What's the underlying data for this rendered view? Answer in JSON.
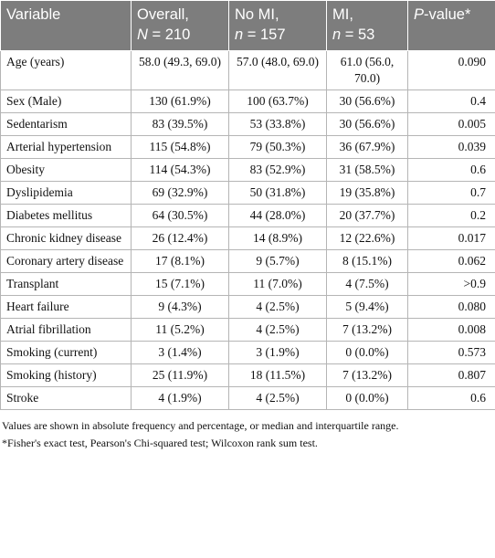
{
  "table": {
    "header": [
      {
        "line1": "Variable"
      },
      {
        "line1": "Overall,",
        "italic": "N",
        "rest": " = 210"
      },
      {
        "line1": "No MI,",
        "italic": "n",
        "rest": " = 157"
      },
      {
        "line1": "MI,",
        "italic": "n",
        "rest": " = 53"
      },
      {
        "italic": "P",
        "rest": "-value*"
      }
    ],
    "rows": [
      [
        "Age (years)",
        "58.0 (49.3, 69.0)",
        "57.0 (48.0, 69.0)",
        "61.0 (56.0, 70.0)",
        "0.090"
      ],
      [
        "Sex (Male)",
        "130 (61.9%)",
        "100 (63.7%)",
        "30 (56.6%)",
        "0.4"
      ],
      [
        "Sedentarism",
        "83 (39.5%)",
        "53 (33.8%)",
        "30 (56.6%)",
        "0.005"
      ],
      [
        "Arterial hypertension",
        "115 (54.8%)",
        "79 (50.3%)",
        "36 (67.9%)",
        "0.039"
      ],
      [
        "Obesity",
        "114 (54.3%)",
        "83 (52.9%)",
        "31 (58.5%)",
        "0.6"
      ],
      [
        "Dyslipidemia",
        "69 (32.9%)",
        "50 (31.8%)",
        "19 (35.8%)",
        "0.7"
      ],
      [
        "Diabetes mellitus",
        "64 (30.5%)",
        "44 (28.0%)",
        "20 (37.7%)",
        "0.2"
      ],
      [
        "Chronic kidney disease",
        "26 (12.4%)",
        "14 (8.9%)",
        "12 (22.6%)",
        "0.017"
      ],
      [
        "Coronary artery disease",
        "17 (8.1%)",
        "9 (5.7%)",
        "8 (15.1%)",
        "0.062"
      ],
      [
        "Transplant",
        "15 (7.1%)",
        "11 (7.0%)",
        "4 (7.5%)",
        ">0.9"
      ],
      [
        "Heart failure",
        "9 (4.3%)",
        "4 (2.5%)",
        "5 (9.4%)",
        "0.080"
      ],
      [
        "Atrial fibrillation",
        "11 (5.2%)",
        "4 (2.5%)",
        "7 (13.2%)",
        "0.008"
      ],
      [
        "Smoking (current)",
        "3 (1.4%)",
        "3 (1.9%)",
        "0 (0.0%)",
        "0.573"
      ],
      [
        "Smoking (history)",
        "25 (11.9%)",
        "18 (11.5%)",
        "7 (13.2%)",
        "0.807"
      ],
      [
        "Stroke",
        "4 (1.9%)",
        "4 (2.5%)",
        "0 (0.0%)",
        "0.6"
      ]
    ]
  },
  "footnotes": [
    "Values are shown in absolute frequency and percentage, or median and interquartile range.",
    "*Fisher's exact test, Pearson's Chi-squared test; Wilcoxon rank sum test."
  ]
}
